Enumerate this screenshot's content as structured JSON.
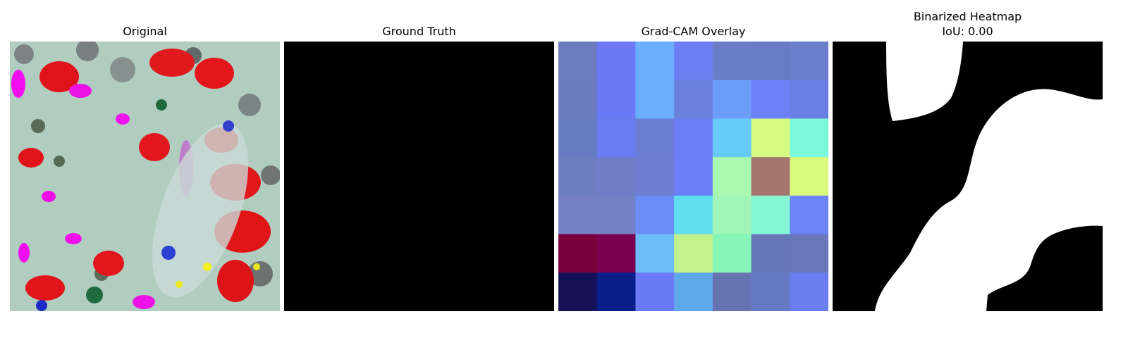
{
  "panels": [
    {
      "title": "Original",
      "image": "leaf-photo-with-color-artifacts"
    },
    {
      "title": "Ground Truth",
      "image": "empty-black-mask"
    },
    {
      "title": "Grad-CAM Overlay",
      "image": "7x7-heatmap-overlay"
    },
    {
      "title": "Binarized Heatmap",
      "subtitle": "IoU: 0.00",
      "image": "binary-mask"
    }
  ],
  "colors": {
    "background": "#ffffff",
    "mask_black": "#000000",
    "mask_white": "#ffffff"
  },
  "gradcam": {
    "grid_size": 7,
    "cells": [
      [
        "#6a7cbb",
        "#6b79f6",
        "#6aaefc",
        "#6c7ef1",
        "#697dc8",
        "#677cc4",
        "#6a7ecb"
      ],
      [
        "#6a7bbd",
        "#6b79f6",
        "#6aaefc",
        "#6b7fdb",
        "#6b9cf8",
        "#6b7ff7",
        "#6b7ee6"
      ],
      [
        "#677bc0",
        "#6b7bf0",
        "#6b7ed4",
        "#6c7ef6",
        "#66cbf9",
        "#d6f984",
        "#7bf7db"
      ],
      [
        "#6d7ebf",
        "#6f7ec6",
        "#6f7ed0",
        "#6b7ef6",
        "#aaf8b0",
        "#a5766f",
        "#d8f97a"
      ],
      [
        "#7482c5",
        "#7481c4",
        "#6b8ef6",
        "#60def0",
        "#a0f6b8",
        "#85f7d3",
        "#6d84f6"
      ],
      [
        "#7a003c",
        "#7a0052",
        "#6bbcf7",
        "#c2f18e",
        "#86f5b5",
        "#6778b8",
        "#6878bb"
      ],
      [
        "#151157",
        "#081e88",
        "#6a79f6",
        "#5fa8ec",
        "#6673b0",
        "#6679c5",
        "#6b7ef0"
      ]
    ]
  }
}
